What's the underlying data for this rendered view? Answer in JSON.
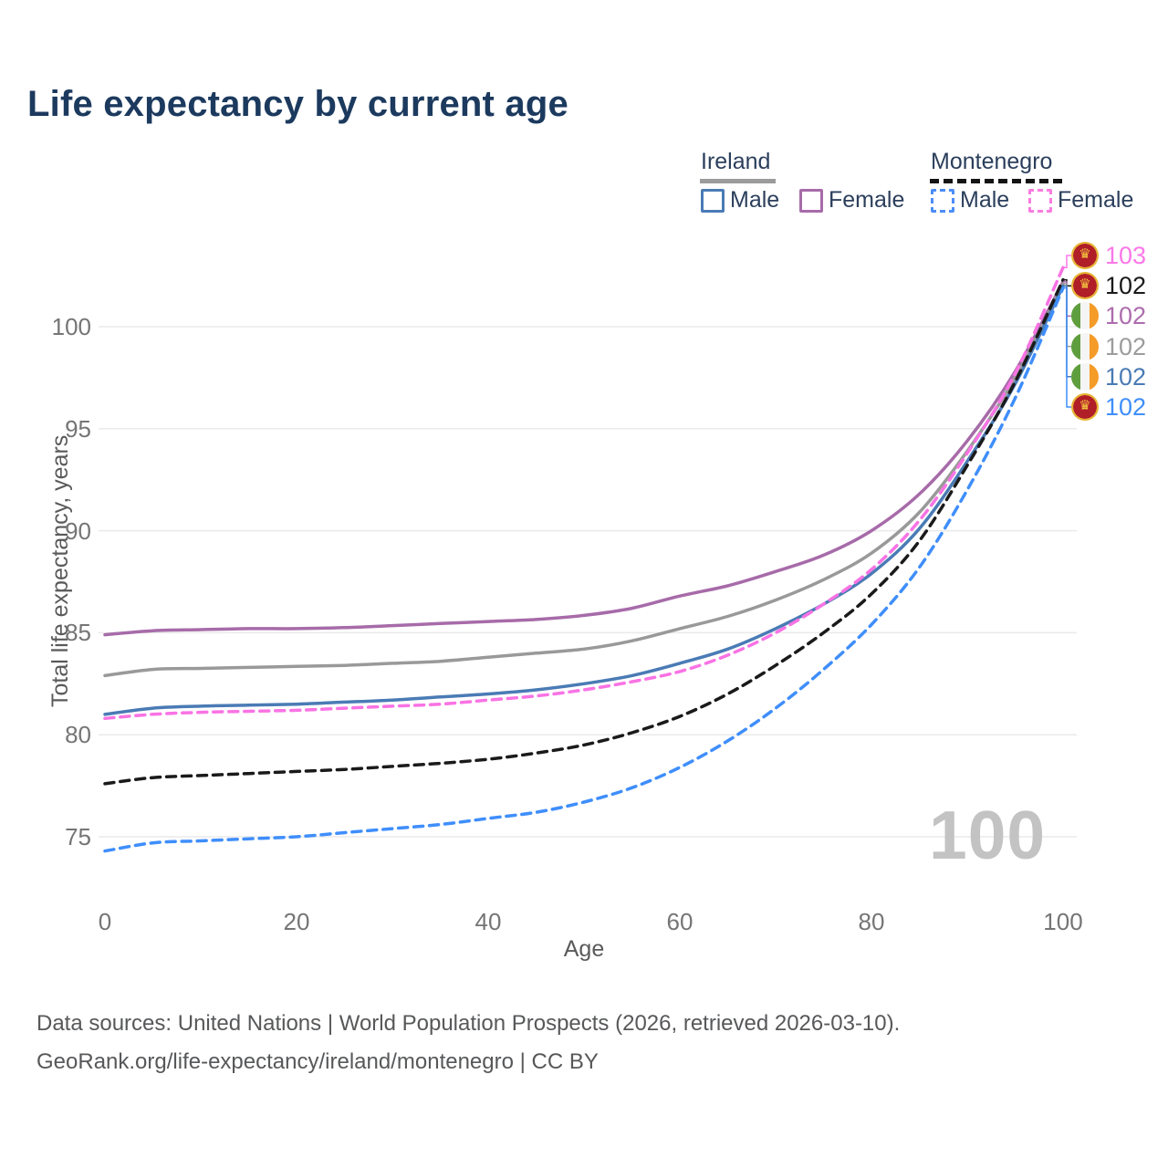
{
  "title": "Life expectancy by current age",
  "legend": {
    "ireland": {
      "label": "Ireland",
      "male": "Male",
      "female": "Female"
    },
    "montenegro": {
      "label": "Montenegro",
      "male": "Male",
      "female": "Female"
    }
  },
  "chart_data": {
    "type": "line",
    "title": "Life expectancy by current age",
    "xlabel": "Age",
    "ylabel": "Total life expectancy, years",
    "xticks": [
      0,
      20,
      40,
      60,
      80,
      100
    ],
    "yticks": [
      75,
      80,
      85,
      90,
      95,
      100
    ],
    "xlim": [
      0,
      100
    ],
    "ylim": [
      73.5,
      104
    ],
    "grid": "horizontal-only",
    "legend_position": "top-right",
    "x": [
      0,
      5,
      10,
      15,
      20,
      25,
      30,
      35,
      40,
      45,
      50,
      55,
      60,
      65,
      70,
      75,
      80,
      85,
      90,
      95,
      100
    ],
    "series": [
      {
        "name": "Ireland Female",
        "country": "ireland",
        "sex": "female",
        "color": "#a76ba9",
        "dash": "solid",
        "values": [
          84.9,
          85.1,
          85.15,
          85.2,
          85.2,
          85.25,
          85.35,
          85.45,
          85.55,
          85.65,
          85.85,
          86.2,
          86.8,
          87.3,
          88.0,
          88.8,
          90.0,
          91.8,
          94.4,
          97.8,
          102.2
        ]
      },
      {
        "name": "Ireland Total",
        "country": "ireland",
        "sex": "both",
        "color": "#999999",
        "dash": "solid",
        "values": [
          82.9,
          83.2,
          83.25,
          83.3,
          83.35,
          83.4,
          83.5,
          83.6,
          83.8,
          84.0,
          84.2,
          84.6,
          85.2,
          85.8,
          86.6,
          87.6,
          88.9,
          90.9,
          93.9,
          97.5,
          102.1
        ]
      },
      {
        "name": "Ireland Male",
        "country": "ireland",
        "sex": "male",
        "color": "#4a7bb5",
        "dash": "solid",
        "values": [
          81.0,
          81.3,
          81.4,
          81.45,
          81.5,
          81.6,
          81.7,
          81.85,
          82.0,
          82.2,
          82.5,
          82.9,
          83.5,
          84.2,
          85.2,
          86.4,
          87.9,
          90.1,
          93.4,
          97.2,
          102.0
        ]
      },
      {
        "name": "Montenegro Female",
        "country": "montenegro",
        "sex": "female",
        "color": "#f973e4",
        "dash": "dashed",
        "values": [
          80.8,
          81.0,
          81.1,
          81.15,
          81.2,
          81.3,
          81.4,
          81.5,
          81.7,
          81.9,
          82.2,
          82.6,
          83.1,
          83.9,
          85.0,
          86.4,
          88.1,
          90.5,
          93.8,
          97.7,
          102.9
        ]
      },
      {
        "name": "Montenegro Total",
        "country": "montenegro",
        "sex": "both",
        "color": "#1a1a1a",
        "dash": "dashed",
        "values": [
          77.6,
          77.9,
          78.0,
          78.1,
          78.2,
          78.3,
          78.45,
          78.6,
          78.8,
          79.1,
          79.5,
          80.1,
          80.9,
          82.0,
          83.4,
          85.0,
          86.9,
          89.5,
          93.2,
          97.3,
          102.3
        ]
      },
      {
        "name": "Montenegro Male",
        "country": "montenegro",
        "sex": "male",
        "color": "#3f8efc",
        "dash": "dashed",
        "values": [
          74.3,
          74.7,
          74.8,
          74.9,
          75.0,
          75.2,
          75.4,
          75.6,
          75.9,
          76.2,
          76.7,
          77.4,
          78.4,
          79.7,
          81.3,
          83.2,
          85.4,
          88.2,
          92.0,
          96.5,
          101.9
        ]
      }
    ]
  },
  "end_labels": [
    {
      "text": "103",
      "series": "Montenegro Female",
      "flag": "montenegro-flag-icon",
      "country": "montenegro",
      "color": "#fb78e8"
    },
    {
      "text": "102",
      "series": "Montenegro Total",
      "flag": "montenegro-flag-icon",
      "country": "montenegro",
      "color": "#1a1a1a"
    },
    {
      "text": "102",
      "series": "Ireland Female",
      "flag": "ireland-flag-icon",
      "country": "ireland",
      "color": "#ad6cad"
    },
    {
      "text": "102",
      "series": "Ireland Total",
      "flag": "ireland-flag-icon",
      "country": "ireland",
      "color": "#9c9c9c"
    },
    {
      "text": "102",
      "series": "Ireland Male",
      "flag": "ireland-flag-icon",
      "country": "ireland",
      "color": "#4a7bb5"
    },
    {
      "text": "102",
      "series": "Montenegro Male",
      "flag": "montenegro-flag-icon",
      "country": "montenegro",
      "color": "#3f8efc"
    }
  ],
  "watermark": "100",
  "footer": {
    "sources": "Data sources: United Nations | World Population Prospects (2026, retrieved 2026-03-10).",
    "attribution": "GeoRank.org/life-expectancy/ireland/montenegro | CC BY"
  }
}
